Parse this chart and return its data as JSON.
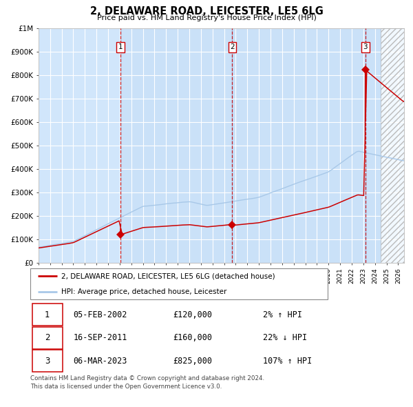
{
  "title": "2, DELAWARE ROAD, LEICESTER, LE5 6LG",
  "subtitle": "Price paid vs. HM Land Registry's House Price Index (HPI)",
  "hpi_color": "#a8c8e8",
  "price_color": "#cc0000",
  "bg_color": "#ddeeff",
  "white": "#ffffff",
  "grid_color": "#ffffff",
  "legend_entries": [
    "2, DELAWARE ROAD, LEICESTER, LE5 6LG (detached house)",
    "HPI: Average price, detached house, Leicester"
  ],
  "table_rows": [
    [
      "1",
      "05-FEB-2002",
      "£120,000",
      "2% ↑ HPI"
    ],
    [
      "2",
      "16-SEP-2011",
      "£160,000",
      "22% ↓ HPI"
    ],
    [
      "3",
      "06-MAR-2023",
      "£825,000",
      "107% ↑ HPI"
    ]
  ],
  "footer": "Contains HM Land Registry data © Crown copyright and database right 2024.\nThis data is licensed under the Open Government Licence v3.0.",
  "t_dates": [
    2002.09,
    2011.71,
    2023.17
  ],
  "t_prices": [
    120000,
    160000,
    825000
  ],
  "t_labels": [
    "1",
    "2",
    "3"
  ],
  "xlim": [
    1995,
    2026.5
  ],
  "ylim": [
    0,
    1000000
  ],
  "yticks": [
    0,
    100000,
    200000,
    300000,
    400000,
    500000,
    600000,
    700000,
    800000,
    900000,
    1000000
  ],
  "ytick_labels": [
    "£0",
    "£100K",
    "£200K",
    "£300K",
    "£400K",
    "£500K",
    "£600K",
    "£700K",
    "£800K",
    "£900K",
    "£1M"
  ],
  "xticks": [
    1995,
    1996,
    1997,
    1998,
    1999,
    2000,
    2001,
    2002,
    2003,
    2004,
    2005,
    2006,
    2007,
    2008,
    2009,
    2010,
    2011,
    2012,
    2013,
    2014,
    2015,
    2016,
    2017,
    2018,
    2019,
    2020,
    2021,
    2022,
    2023,
    2024,
    2025,
    2026
  ]
}
